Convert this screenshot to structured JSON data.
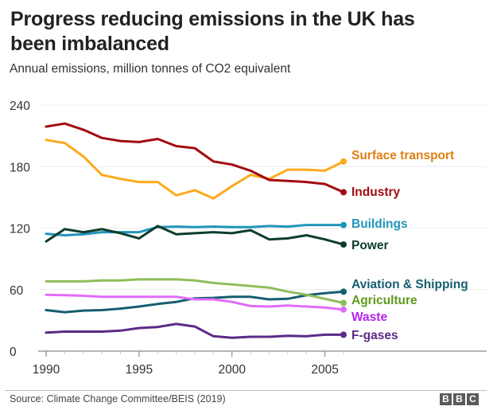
{
  "header": {
    "title": "Progress reducing emissions in the UK has been imbalanced",
    "subtitle": "Annual emissions, million tonnes of CO2 equivalent"
  },
  "footer": {
    "source": "Source: Climate Change Committee/BEIS (2019)",
    "logo_letters": [
      "B",
      "B",
      "C"
    ]
  },
  "chart_data": {
    "type": "line",
    "title": "Progress reducing emissions in the UK has been imbalanced",
    "subtitle": "Annual emissions, million tonnes of CO2 equivalent",
    "xlabel": "",
    "ylabel": "",
    "x": [
      1990,
      1991,
      1992,
      1993,
      1994,
      1995,
      1996,
      1997,
      1998,
      1999,
      2000,
      2001,
      2002,
      2003,
      2004,
      2005,
      2006
    ],
    "xlim": [
      1990,
      2006
    ],
    "ylim": [
      0,
      240
    ],
    "xticks": [
      1990,
      1995,
      2000,
      2005
    ],
    "xtick_labels": [
      "1990",
      "1995",
      "2000",
      "2005"
    ],
    "yticks": [
      0,
      60,
      120,
      180,
      240
    ],
    "ytick_labels": [
      "0",
      "60",
      "120",
      "180",
      "240"
    ],
    "grid": "horizontal",
    "legend": "direct-labels-right",
    "series": [
      {
        "name": "Surface transport",
        "color": "#fcaa1d",
        "label_color": "#e07e12",
        "values": [
          206,
          203,
          190,
          172,
          168,
          165,
          165,
          152,
          157,
          149,
          161,
          172,
          168,
          177,
          177,
          176,
          185
        ]
      },
      {
        "name": "Industry",
        "color": "#a30b10",
        "label_color": "#a30b10",
        "values": [
          219,
          222,
          216,
          208,
          205,
          204,
          207,
          200,
          198,
          185,
          182,
          176,
          167,
          166,
          165,
          163,
          155
        ]
      },
      {
        "name": "Buildings",
        "color": "#2295bb",
        "label_color": "#2295bb",
        "values": [
          114.5,
          113,
          114,
          116,
          116,
          116,
          121,
          121.5,
          121,
          121.5,
          121,
          121,
          122,
          121.5,
          123,
          123,
          123
        ]
      },
      {
        "name": "Power",
        "color": "#0d3d2c",
        "label_color": "#0d3d2c",
        "values": [
          107,
          119,
          116,
          119,
          115,
          110,
          122,
          114,
          115,
          116,
          115,
          118,
          109,
          110,
          113,
          109,
          104
        ]
      },
      {
        "name": "Aviation & Shipping",
        "color": "#155e70",
        "label_color": "#155e70",
        "values": [
          40,
          38,
          39.5,
          40,
          41.5,
          43.5,
          46,
          48,
          51.5,
          52,
          53,
          53,
          50.5,
          51,
          54.5,
          56.5,
          58
        ]
      },
      {
        "name": "Agriculture",
        "color": "#8fbd5a",
        "label_color": "#5f9a1e",
        "values": [
          68,
          68,
          68,
          69,
          69,
          70,
          70,
          70,
          69,
          66.5,
          65,
          63.5,
          62,
          58,
          55,
          51,
          47
        ]
      },
      {
        "name": "Waste",
        "color": "#e26cf9",
        "label_color": "#b523f0",
        "values": [
          55,
          54.5,
          54,
          53,
          53,
          53,
          53,
          53,
          50.5,
          50.5,
          48,
          44,
          43.5,
          44.5,
          43.5,
          42.5,
          40.5
        ]
      },
      {
        "name": "F-gases",
        "color": "#5b2a86",
        "label_color": "#5b2a86",
        "values": [
          18,
          19,
          19,
          19,
          20,
          22.5,
          23.5,
          26.5,
          24,
          14.5,
          13,
          14,
          14,
          15,
          14.5,
          16,
          16
        ]
      }
    ]
  }
}
